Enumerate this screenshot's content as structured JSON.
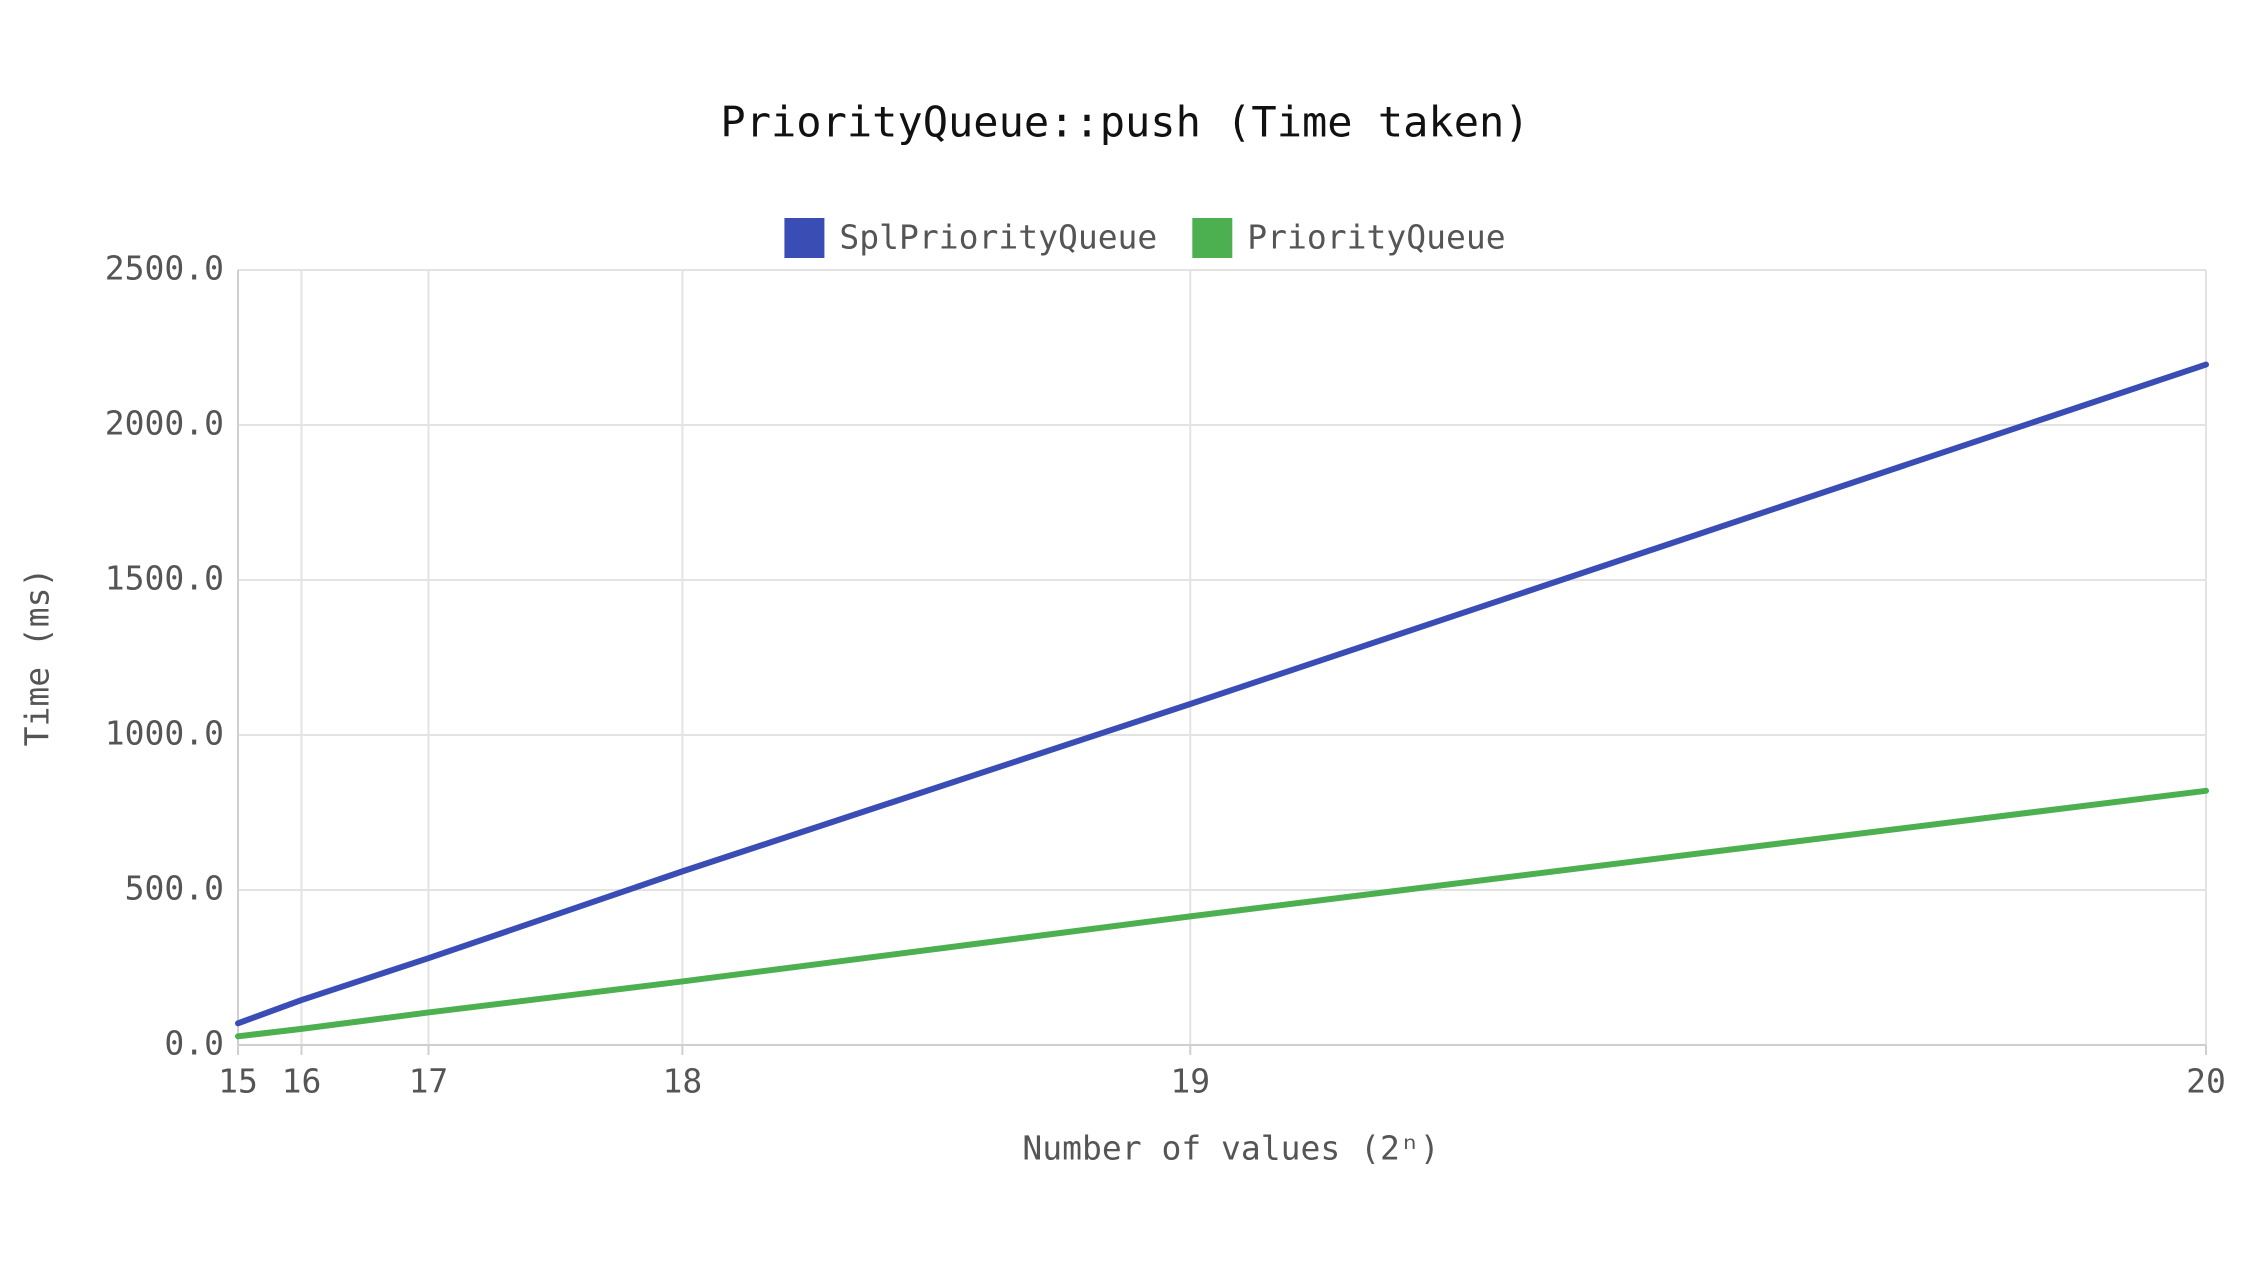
{
  "chart_data": {
    "type": "line",
    "title": "PriorityQueue::push (Time taken)",
    "x_label": "Number of values (2ⁿ)",
    "y_label": "Time (ms)",
    "x": [
      32768,
      65536,
      131072,
      262144,
      524288,
      1048576
    ],
    "series": [
      {
        "name": "SplPriorityQueue",
        "color": "#3a4db5",
        "values": [
          70,
          145,
          280,
          560,
          1100,
          2195
        ]
      },
      {
        "name": "PriorityQueue",
        "color": "#4caf50",
        "values": [
          28,
          52,
          105,
          205,
          415,
          820
        ]
      }
    ],
    "xlim": [
      32768,
      1048576
    ],
    "xticks": [
      {
        "value": 32768,
        "label": "15"
      },
      {
        "value": 65536,
        "label": "16"
      },
      {
        "value": 131072,
        "label": "17"
      },
      {
        "value": 262144,
        "label": "18"
      },
      {
        "value": 524288,
        "label": "19"
      },
      {
        "value": 1048576,
        "label": "20"
      }
    ],
    "ylim": [
      0,
      2500
    ],
    "yticks": [
      {
        "value": 0,
        "label": "0.0"
      },
      {
        "value": 500,
        "label": "500.0"
      },
      {
        "value": 1000,
        "label": "1000.0"
      },
      {
        "value": 1500,
        "label": "1500.0"
      },
      {
        "value": 2000,
        "label": "2000.0"
      },
      {
        "value": 2500,
        "label": "2500.0"
      }
    ],
    "grid": true,
    "legend": "top"
  }
}
